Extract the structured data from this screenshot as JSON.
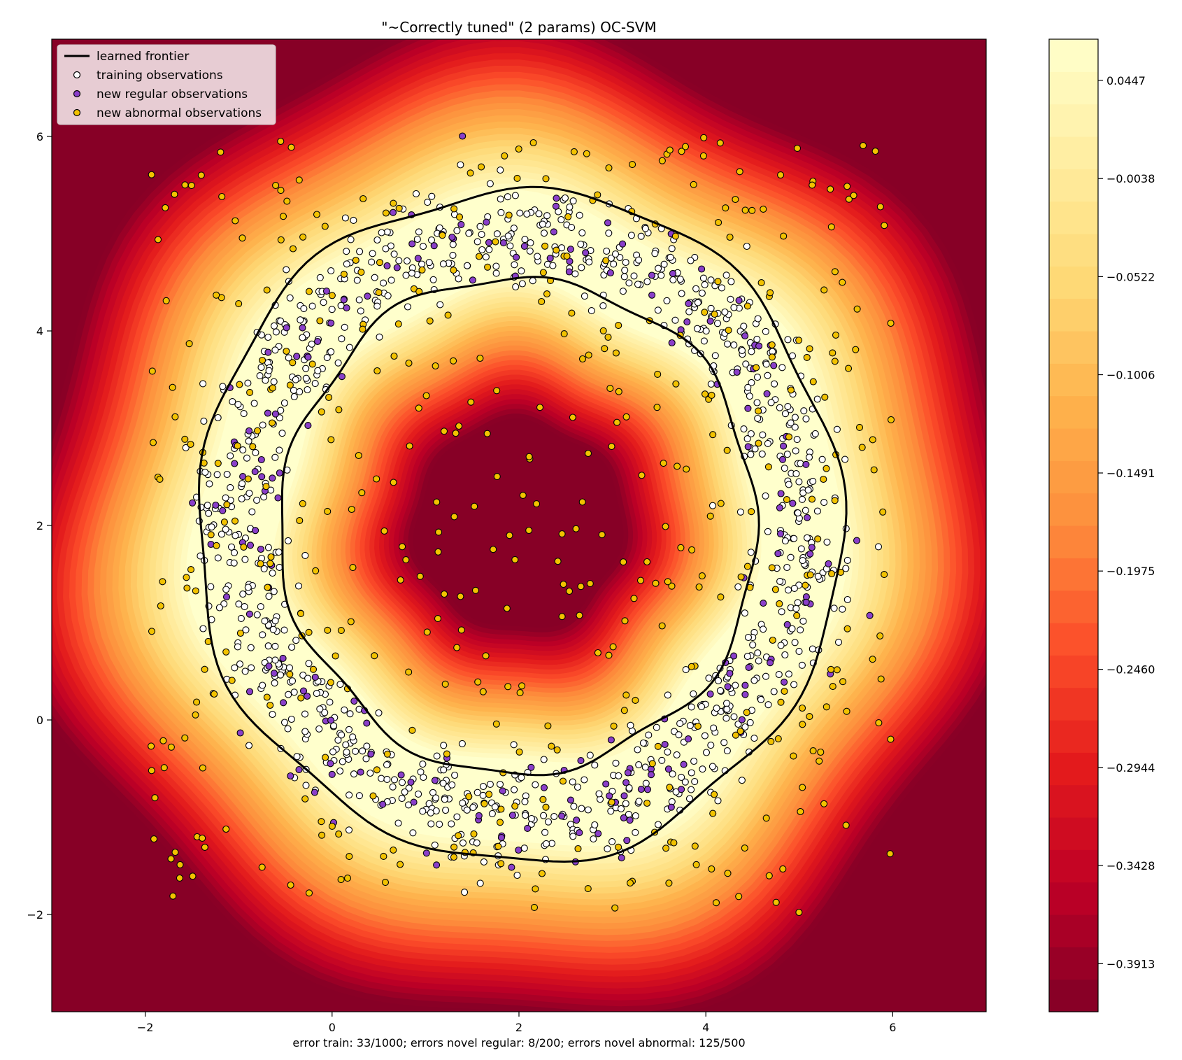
{
  "chart_data": {
    "type": "scatter",
    "title": "\"~Correctly tuned\" (2 params) OC-SVM",
    "xlabel": "error train: 33/1000; errors novel regular: 8/200; errors novel abnormal: 125/500",
    "ylabel": "",
    "xlim": [
      -3,
      7
    ],
    "ylim": [
      -3,
      7
    ],
    "x_ticks": [
      -2,
      0,
      2,
      4,
      6
    ],
    "y_ticks": [
      -2,
      0,
      2,
      4,
      6
    ],
    "x_tick_labels": [
      "−2",
      "0",
      "2",
      "4",
      "6"
    ],
    "y_tick_labels": [
      "−2",
      "0",
      "2",
      "4",
      "6"
    ],
    "grid": false,
    "legend_position": "top-left",
    "background": "filled contour of decision function (YlOrRd colormap), ring centered near (2, 2)",
    "ring": {
      "center": [
        2,
        2
      ],
      "inner_radius": 2.55,
      "outer_radius": 3.45
    },
    "colorbar": {
      "range": [
        -0.415,
        0.065
      ],
      "tick_values": [
        0.0447,
        -0.0038,
        -0.0522,
        -0.1006,
        -0.1491,
        -0.1975,
        -0.246,
        -0.2944,
        -0.3428,
        -0.3913
      ],
      "tick_labels": [
        "0.0447",
        "−0.0038",
        "−0.0522",
        "−0.1006",
        "−0.1491",
        "−0.1975",
        "−0.2460",
        "−0.2944",
        "−0.3428",
        "−0.3913"
      ],
      "levels": 30
    },
    "series": [
      {
        "name": "learned frontier",
        "kind": "line",
        "color": "#000000"
      },
      {
        "name": "training observations",
        "kind": "scatter",
        "color": "#ffffff",
        "count": 1000
      },
      {
        "name": "new regular observations",
        "kind": "scatter",
        "color": "#8a3fc9",
        "count": 200
      },
      {
        "name": "new abnormal observations",
        "kind": "scatter",
        "color": "#f2c200",
        "count": 500
      }
    ]
  }
}
